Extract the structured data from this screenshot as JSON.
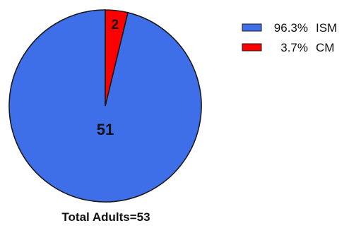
{
  "chart_data": {
    "type": "pie",
    "slices": [
      {
        "label": "ISM",
        "count": 51,
        "percent_label": "96.3%",
        "color": "#3f6fe8"
      },
      {
        "label": "CM",
        "count": 2,
        "percent_label": "3.7%",
        "color": "#ff0000"
      }
    ],
    "total_caption": "Total Adults=53",
    "legend_placement": "top-right"
  }
}
